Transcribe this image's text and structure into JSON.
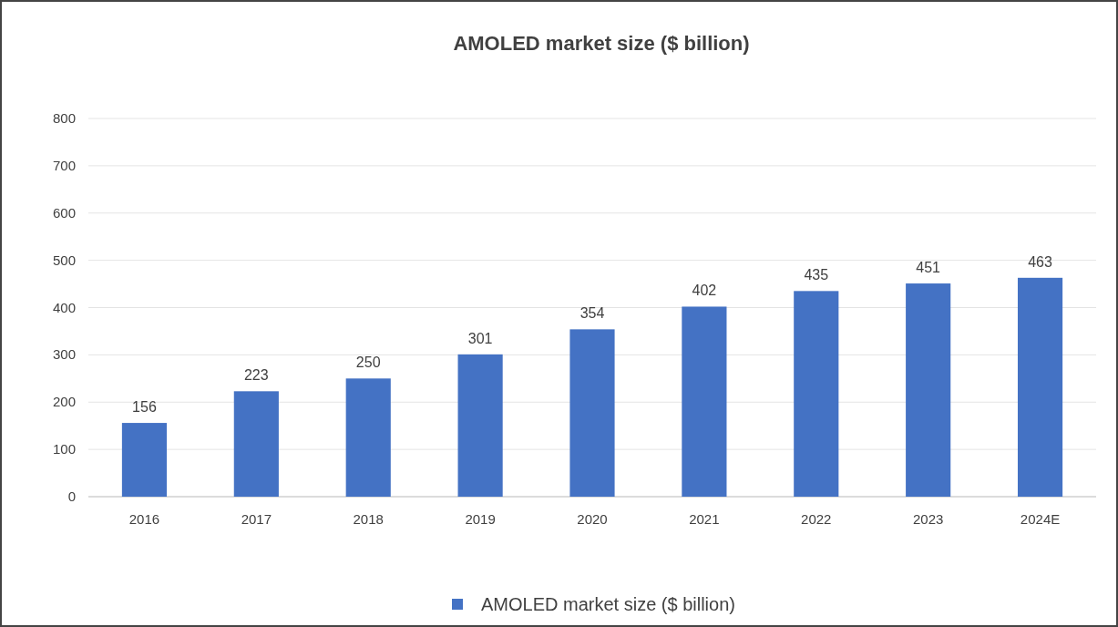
{
  "chart_data": {
    "type": "bar",
    "title": "AMOLED market size ($ billion)",
    "categories": [
      "2016",
      "2017",
      "2018",
      "2019",
      "2020",
      "2021",
      "2022",
      "2023",
      "2024E"
    ],
    "series": [
      {
        "name": "AMOLED market size ($ billion)",
        "color": "#4472c4",
        "values": [
          156,
          223,
          250,
          301,
          354,
          402,
          435,
          451,
          463
        ]
      }
    ],
    "ylim": [
      0,
      800
    ],
    "yticks": [
      0,
      100,
      200,
      300,
      400,
      500,
      600,
      700,
      800
    ],
    "grid": "y",
    "legend": "bottom",
    "data_labels": true
  }
}
